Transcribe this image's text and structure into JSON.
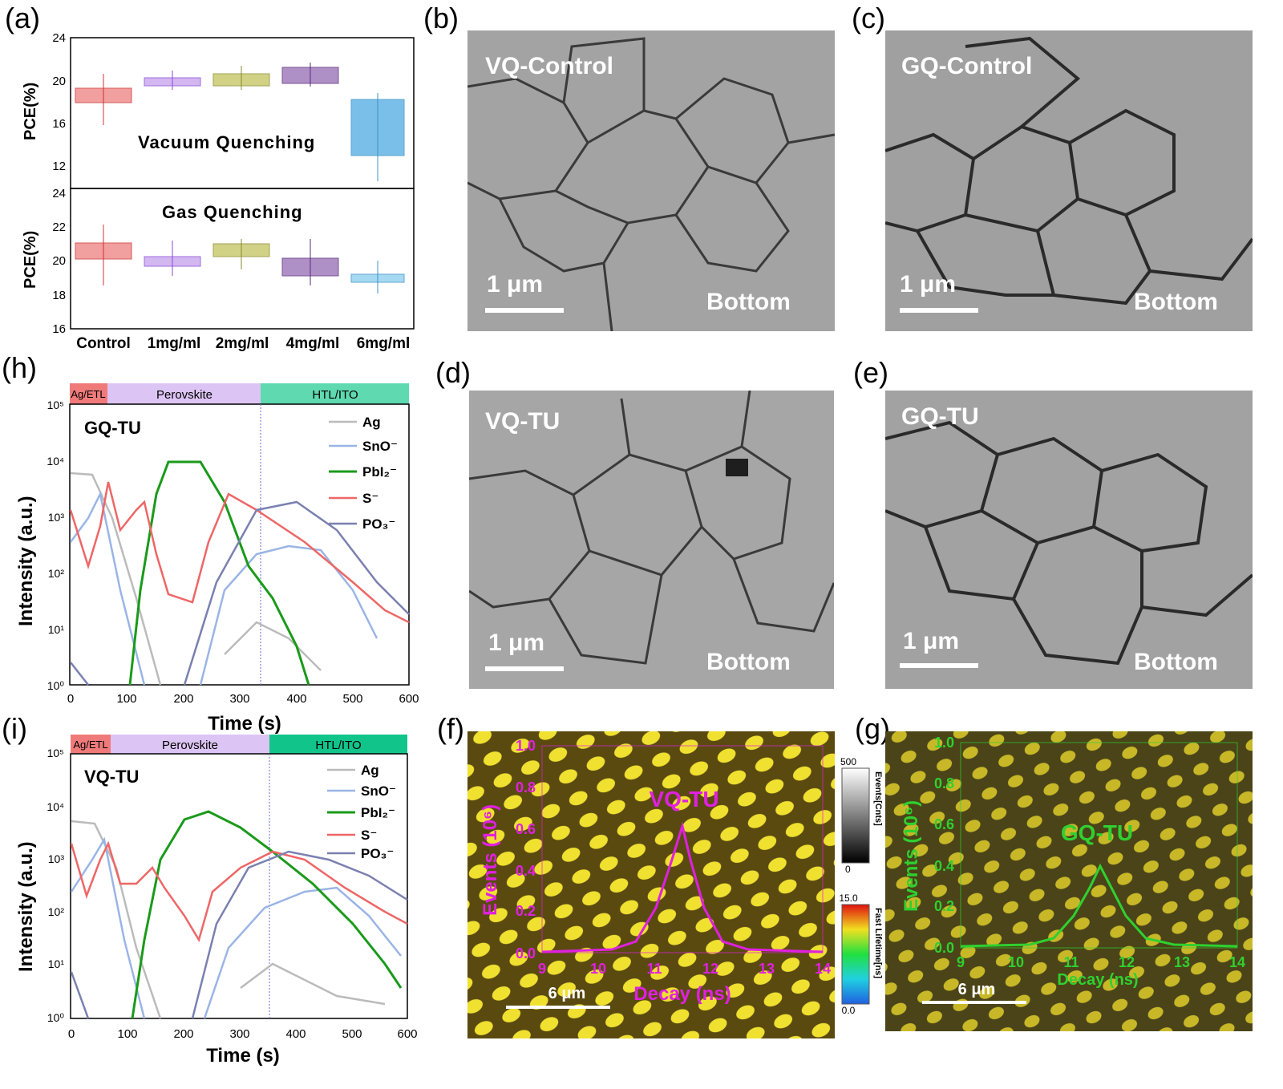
{
  "labels": {
    "a": "(a)",
    "b": "(b)",
    "c": "(c)",
    "d": "(d)",
    "e": "(e)",
    "f": "(f)",
    "g": "(g)",
    "h": "(h)",
    "i": "(i)"
  },
  "panel_a": {
    "ylabel": "PCE(%)",
    "top_title": "Vacuum Quenching",
    "bottom_title": "Gas Quenching",
    "categories": [
      "Control",
      "1mg/ml",
      "2mg/ml",
      "4mg/ml",
      "6mg/ml"
    ],
    "top_ticks": [
      "24",
      "20",
      "16",
      "12"
    ],
    "bottom_ticks": [
      "24",
      "22",
      "20",
      "18",
      "16"
    ],
    "colors": [
      "#d23a3a",
      "#9a55d6",
      "#9a9a2a",
      "#7a3a9a",
      "#5ab0e6"
    ]
  },
  "sem": {
    "b": {
      "title": "VQ-Control",
      "scale": "1 μm",
      "position": "Bottom"
    },
    "c": {
      "title": "GQ-Control",
      "scale": "1 μm",
      "position": "Bottom"
    },
    "d": {
      "title": "VQ-TU",
      "scale": "1 μm",
      "position": "Bottom"
    },
    "e": {
      "title": "GQ-TU",
      "scale": "1 μm",
      "position": "Bottom"
    }
  },
  "tof_h": {
    "sample": "GQ-TU",
    "regions": [
      "Ag/ETL",
      "Perovskite",
      "HTL/ITO"
    ],
    "legend": [
      "Ag",
      "SnO⁻",
      "PbI₂⁻",
      "S⁻",
      "PO₃⁻"
    ],
    "xlabel": "Time (s)",
    "ylabel": "Intensity (a.u.)",
    "xticks": [
      "0",
      "100",
      "200",
      "300",
      "400",
      "500",
      "600"
    ],
    "yticks": [
      "10⁵",
      "10⁴",
      "10³",
      "10²",
      "10¹",
      "10⁰"
    ]
  },
  "tof_i": {
    "sample": "VQ-TU",
    "regions": [
      "Ag/ETL",
      "Perovskite",
      "HTL/ITO"
    ],
    "legend": [
      "Ag",
      "SnO⁻",
      "PbI₂⁻",
      "S⁻",
      "PO₃⁻"
    ],
    "xlabel": "Time (s)",
    "ylabel": "Intensity (a.u.)",
    "xticks": [
      "0",
      "100",
      "200",
      "300",
      "400",
      "500",
      "600"
    ],
    "yticks": [
      "10⁵",
      "10⁴",
      "10³",
      "10²",
      "10¹",
      "10⁰"
    ]
  },
  "flim_f": {
    "sample": "VQ-TU",
    "ylabel": "Events (10⁶)",
    "xlabel": "Decay (ns)",
    "yticks": [
      "1.0",
      "0.8",
      "0.6",
      "0.4",
      "0.2",
      "0.0"
    ],
    "xticks": [
      "9",
      "10",
      "11",
      "12",
      "13",
      "14"
    ],
    "scale": "6 μm",
    "color": "#e020e0"
  },
  "flim_g": {
    "sample": "GQ-TU",
    "ylabel": "Events (10⁶)",
    "xlabel": "Decay (ns)",
    "yticks": [
      "1.0",
      "0.8",
      "0.6",
      "0.4",
      "0.2",
      "0.0"
    ],
    "xticks": [
      "9",
      "10",
      "11",
      "12",
      "13",
      "14"
    ],
    "scale": "6 μm",
    "color": "#30d030"
  },
  "colorbar": {
    "events_max": "500",
    "events_min": "0",
    "events_label": "Events[Cnts]",
    "life_max": "15.0",
    "life_min": "0.0",
    "life_label": "Fast Lifetime[ns]"
  }
}
